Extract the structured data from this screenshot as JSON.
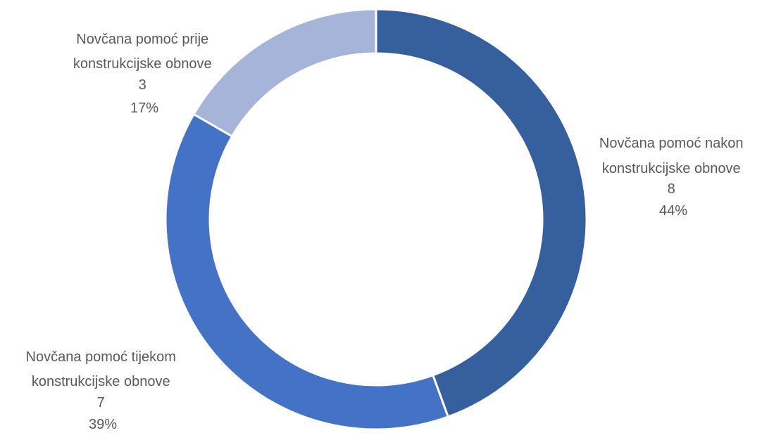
{
  "chart_data": {
    "type": "pie",
    "variant": "doughnut",
    "title": "",
    "slices": [
      {
        "label_lines": [
          "Novčana pomoć nakon",
          "konstrukcijske obnove"
        ],
        "value": "8",
        "percent": "44%",
        "numeric_value": 8,
        "color": "#365F9E"
      },
      {
        "label_lines": [
          "Novčana pomoć tijekom",
          "konstrukcijske obnove"
        ],
        "value": "7",
        "percent": "39%",
        "numeric_value": 7,
        "color": "#4472C4"
      },
      {
        "label_lines": [
          "Novčana pomoć prije",
          "konstrukcijske obnove"
        ],
        "value": "3",
        "percent": "17%",
        "numeric_value": 3,
        "color": "#A7B4DA"
      }
    ],
    "legend": "none",
    "data_labels": "outside-end"
  }
}
